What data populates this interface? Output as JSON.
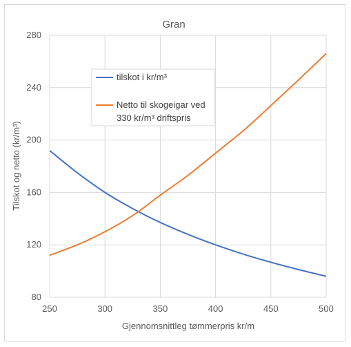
{
  "chart_data": {
    "type": "line",
    "title": "Gran",
    "xlabel": "Gjennomsnittleg tømmerpris kr/m",
    "ylabel": "Tilskot og netto (kr/m³)",
    "xlim": [
      250,
      500
    ],
    "ylim": [
      80,
      280
    ],
    "xticks": [
      250,
      300,
      350,
      400,
      450,
      500
    ],
    "yticks": [
      80,
      120,
      160,
      200,
      240,
      280
    ],
    "grid": true,
    "legend_position": "upper-left-inside",
    "x": [
      250,
      275,
      300,
      325,
      350,
      375,
      400,
      425,
      450,
      475,
      500
    ],
    "series": [
      {
        "name": "tilskot i kr/m³",
        "color": "#4472c4",
        "values": [
          192,
          175,
          160,
          147.7,
          137.1,
          128,
          120,
          112.9,
          106.7,
          101.1,
          96
        ]
      },
      {
        "name_lines": [
          "Netto til skogeigar ved",
          "330 kr/m³ driftspris"
        ],
        "color": "#ed7d31",
        "values": [
          112,
          120,
          130,
          142.3,
          157.9,
          173,
          190,
          207.1,
          226.3,
          245.9,
          266
        ]
      }
    ]
  }
}
